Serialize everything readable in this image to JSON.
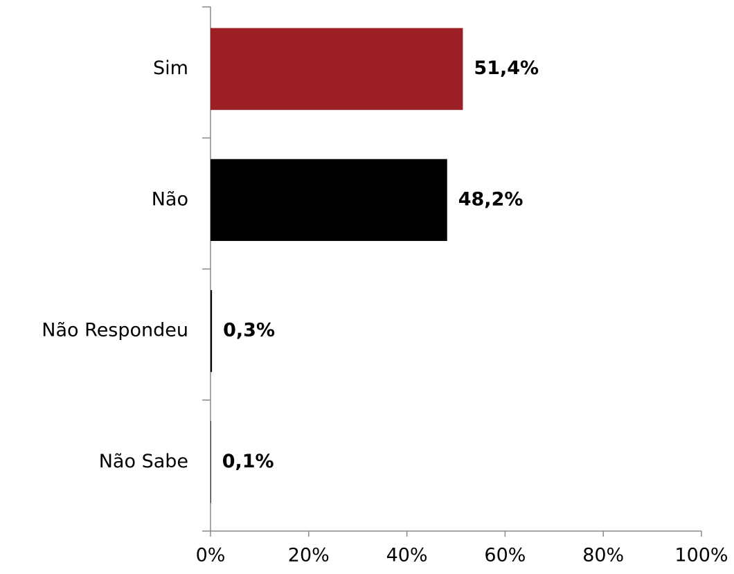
{
  "chart_data": {
    "type": "hbar",
    "categories": [
      "Sim",
      "Não",
      "Não Respondeu",
      "Não Sabe"
    ],
    "values": [
      51.4,
      48.2,
      0.3,
      0.1
    ],
    "value_labels": [
      "51,4%",
      "48,2%",
      "0,3%",
      "0,1%"
    ],
    "colors": [
      "#9b1f24",
      "#000000",
      "#000000",
      "#000000"
    ],
    "xlim": [
      0,
      100
    ],
    "xticks": [
      {
        "value": 0,
        "label": "0%"
      },
      {
        "value": 20,
        "label": "20%"
      },
      {
        "value": 40,
        "label": "40%"
      },
      {
        "value": 60,
        "label": "60%"
      },
      {
        "value": 80,
        "label": "80%"
      },
      {
        "value": 100,
        "label": "100%"
      }
    ],
    "grid": false
  }
}
